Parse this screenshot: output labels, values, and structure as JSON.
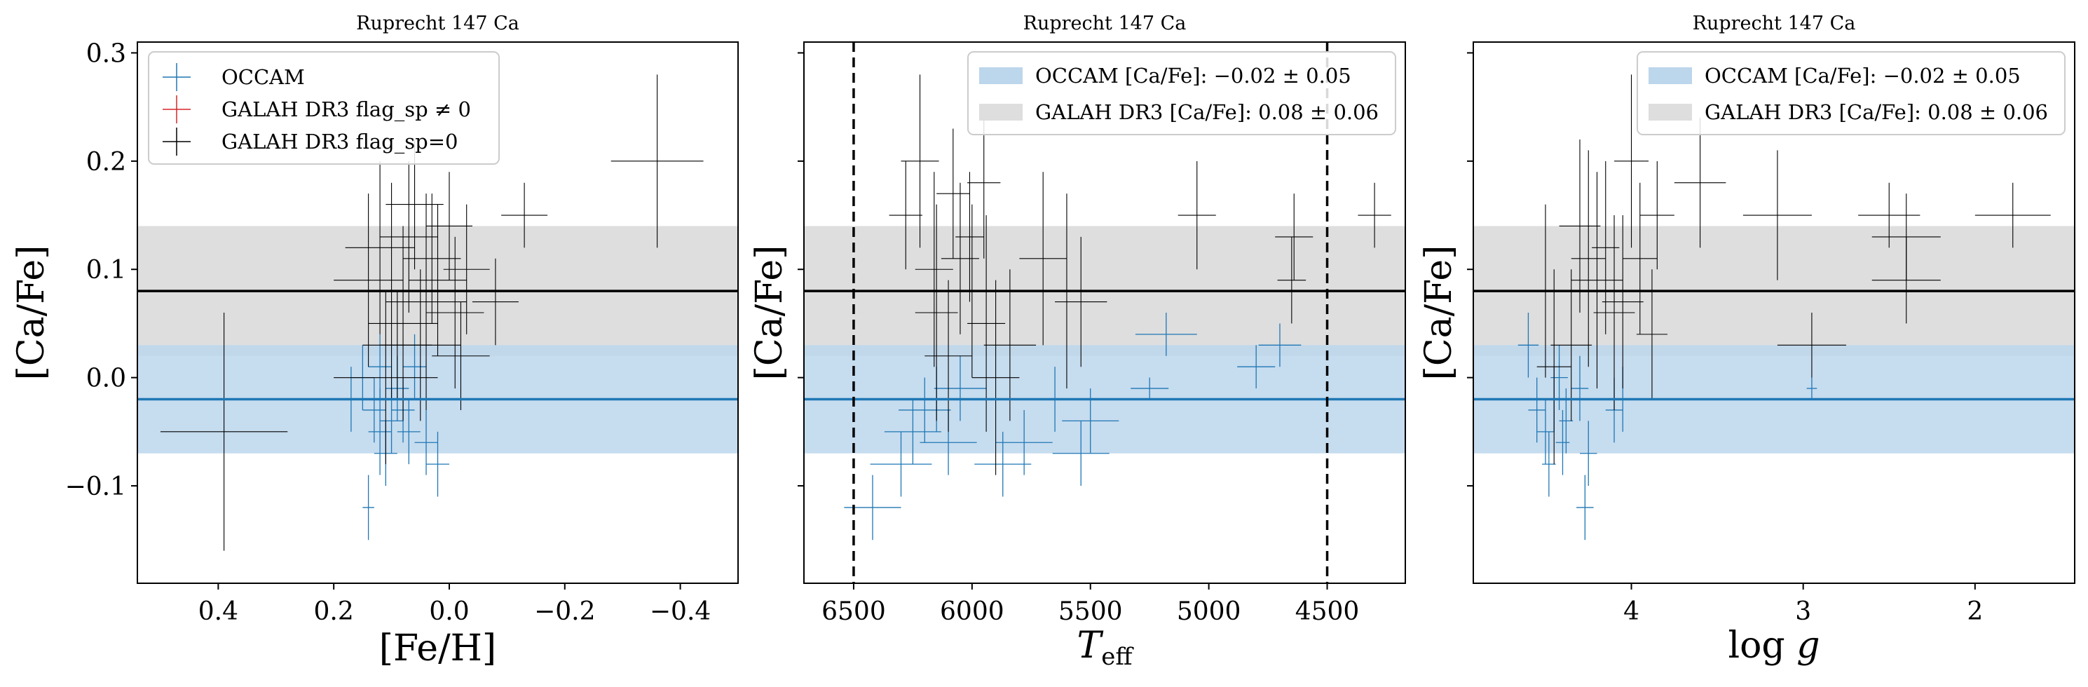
{
  "figure": {
    "background": "#ffffff"
  },
  "style": {
    "occam_color": "#1f77b4",
    "galah_flagged_color": "#d62728",
    "galah_color": "#000000",
    "occam_band_color": "#bcd6ec",
    "galah_band_color": "#dedede"
  },
  "chart_data": [
    {
      "type": "scatter",
      "title": "Ruprecht 147 Ca",
      "xlabel": "[Fe/H]",
      "ylabel": "[Ca/Fe]",
      "xlim": [
        0.54,
        -0.5
      ],
      "ylim": [
        -0.19,
        0.31
      ],
      "xticks": [
        0.4,
        0.2,
        0.0,
        -0.2,
        -0.4
      ],
      "xtick_labels": [
        "0.4",
        "0.2",
        "0.0",
        "−0.2",
        "−0.4"
      ],
      "yticks": [
        -0.1,
        0.0,
        0.1,
        0.2,
        0.3
      ],
      "ytick_labels": [
        "−0.1",
        "0.0",
        "0.1",
        "0.2",
        "0.3"
      ],
      "show_ytick_labels": true,
      "grid": false,
      "legend": {
        "position": "top-left",
        "style": "markers",
        "entries": [
          {
            "label": "OCCAM",
            "color": "#1f77b4"
          },
          {
            "label": "GALAH DR3 flag_sp ≠ 0",
            "color": "#d62728"
          },
          {
            "label": "GALAH DR3 flag_sp=0",
            "color": "#000000"
          }
        ]
      },
      "bands": [
        {
          "series": "OCCAM",
          "center": -0.02,
          "sigma": 0.05
        },
        {
          "series": "GALAH DR3",
          "center": 0.08,
          "sigma": 0.06
        }
      ],
      "vlines": [],
      "series": [
        {
          "name": "OCCAM",
          "points": [
            {
              "x": 0.17,
              "y": -0.02,
              "xerr": 0.02,
              "yerr": 0.03
            },
            {
              "x": 0.15,
              "y": 0.0,
              "xerr": 0.02,
              "yerr": 0.03
            },
            {
              "x": 0.14,
              "y": -0.12,
              "xerr": 0.01,
              "yerr": 0.03
            },
            {
              "x": 0.13,
              "y": -0.03,
              "xerr": 0.02,
              "yerr": 0.03
            },
            {
              "x": 0.12,
              "y": -0.05,
              "xerr": 0.02,
              "yerr": 0.04
            },
            {
              "x": 0.11,
              "y": -0.07,
              "xerr": 0.02,
              "yerr": 0.03
            },
            {
              "x": 0.1,
              "y": -0.04,
              "xerr": 0.02,
              "yerr": 0.03
            },
            {
              "x": 0.09,
              "y": -0.01,
              "xerr": 0.02,
              "yerr": 0.03
            },
            {
              "x": 0.08,
              "y": -0.03,
              "xerr": 0.02,
              "yerr": 0.03
            },
            {
              "x": 0.07,
              "y": -0.05,
              "xerr": 0.02,
              "yerr": 0.03
            },
            {
              "x": 0.06,
              "y": 0.01,
              "xerr": 0.02,
              "yerr": 0.03
            },
            {
              "x": 0.12,
              "y": 0.01,
              "xerr": 0.02,
              "yerr": 0.03
            },
            {
              "x": 0.02,
              "y": -0.08,
              "xerr": 0.02,
              "yerr": 0.03
            },
            {
              "x": 0.04,
              "y": -0.06,
              "xerr": 0.02,
              "yerr": 0.03
            }
          ]
        },
        {
          "name": "GALAH DR3",
          "points": [
            {
              "x": 0.39,
              "y": -0.05,
              "xerr": 0.11,
              "yerr": 0.11
            },
            {
              "x": -0.36,
              "y": 0.2,
              "xerr": 0.08,
              "yerr": 0.08
            },
            {
              "x": -0.13,
              "y": 0.15,
              "xerr": 0.04,
              "yerr": 0.03
            },
            {
              "x": -0.08,
              "y": 0.07,
              "xerr": 0.04,
              "yerr": 0.04
            },
            {
              "x": 0.12,
              "y": 0.12,
              "xerr": 0.06,
              "yerr": 0.08
            },
            {
              "x": 0.1,
              "y": 0.08,
              "xerr": 0.07,
              "yerr": 0.1
            },
            {
              "x": 0.08,
              "y": 0.05,
              "xerr": 0.06,
              "yerr": 0.09
            },
            {
              "x": 0.06,
              "y": 0.16,
              "xerr": 0.05,
              "yerr": 0.06
            },
            {
              "x": 0.05,
              "y": 0.03,
              "xerr": 0.07,
              "yerr": 0.07
            },
            {
              "x": 0.03,
              "y": 0.11,
              "xerr": 0.05,
              "yerr": 0.06
            },
            {
              "x": 0.02,
              "y": 0.09,
              "xerr": 0.05,
              "yerr": 0.07
            },
            {
              "x": 0.0,
              "y": 0.14,
              "xerr": 0.04,
              "yerr": 0.05
            },
            {
              "x": -0.01,
              "y": 0.06,
              "xerr": 0.05,
              "yerr": 0.07
            },
            {
              "x": -0.02,
              "y": 0.02,
              "xerr": 0.05,
              "yerr": 0.05
            },
            {
              "x": 0.14,
              "y": 0.09,
              "xerr": 0.06,
              "yerr": 0.08
            },
            {
              "x": 0.11,
              "y": 0.0,
              "xerr": 0.09,
              "yerr": 0.08
            },
            {
              "x": 0.07,
              "y": 0.13,
              "xerr": 0.05,
              "yerr": 0.07
            },
            {
              "x": 0.04,
              "y": 0.07,
              "xerr": 0.07,
              "yerr": 0.1
            },
            {
              "x": -0.03,
              "y": 0.1,
              "xerr": 0.04,
              "yerr": 0.06
            },
            {
              "x": 0.09,
              "y": 0.03,
              "xerr": 0.06,
              "yerr": 0.05
            }
          ]
        }
      ]
    },
    {
      "type": "scatter",
      "title": "Ruprecht 147 Ca",
      "xlabel": "T_eff",
      "ylabel": "[Ca/Fe]",
      "xlim": [
        6710,
        4170
      ],
      "ylim": [
        -0.19,
        0.31
      ],
      "xticks": [
        6500,
        6000,
        5500,
        5000,
        4500
      ],
      "xtick_labels": [
        "6500",
        "6000",
        "5500",
        "5000",
        "4500"
      ],
      "yticks": [
        -0.1,
        0.0,
        0.1,
        0.2,
        0.3
      ],
      "ytick_labels": [],
      "show_ytick_labels": false,
      "grid": false,
      "legend": {
        "position": "top-right",
        "style": "bands",
        "entries": [
          {
            "label": "OCCAM [Ca/Fe]: −0.02 ± 0.05",
            "color": "#bcd6ec"
          },
          {
            "label": "GALAH DR3 [Ca/Fe]: 0.08 ± 0.06",
            "color": "#dedede"
          }
        ]
      },
      "bands": [
        {
          "series": "OCCAM",
          "center": -0.02,
          "sigma": 0.05
        },
        {
          "series": "GALAH DR3",
          "center": 0.08,
          "sigma": 0.06
        }
      ],
      "vlines": [
        6500,
        4500
      ],
      "series": [
        {
          "name": "OCCAM",
          "points": [
            {
              "x": 6420,
              "y": -0.12,
              "xerr": 120,
              "yerr": 0.03
            },
            {
              "x": 6300,
              "y": -0.08,
              "xerr": 130,
              "yerr": 0.03
            },
            {
              "x": 6250,
              "y": -0.05,
              "xerr": 120,
              "yerr": 0.03
            },
            {
              "x": 6200,
              "y": -0.03,
              "xerr": 110,
              "yerr": 0.03
            },
            {
              "x": 6150,
              "y": -0.02,
              "xerr": 130,
              "yerr": 0.03
            },
            {
              "x": 6100,
              "y": -0.06,
              "xerr": 120,
              "yerr": 0.03
            },
            {
              "x": 6050,
              "y": -0.01,
              "xerr": 110,
              "yerr": 0.03
            },
            {
              "x": 5870,
              "y": -0.08,
              "xerr": 120,
              "yerr": 0.03
            },
            {
              "x": 5780,
              "y": -0.06,
              "xerr": 120,
              "yerr": 0.03
            },
            {
              "x": 5650,
              "y": -0.02,
              "xerr": 110,
              "yerr": 0.03
            },
            {
              "x": 5500,
              "y": -0.04,
              "xerr": 120,
              "yerr": 0.03
            },
            {
              "x": 5540,
              "y": -0.07,
              "xerr": 120,
              "yerr": 0.03
            },
            {
              "x": 5250,
              "y": -0.01,
              "xerr": 80,
              "yerr": 0.01
            },
            {
              "x": 5180,
              "y": 0.04,
              "xerr": 130,
              "yerr": 0.02
            },
            {
              "x": 4800,
              "y": 0.01,
              "xerr": 80,
              "yerr": 0.02
            },
            {
              "x": 4700,
              "y": 0.03,
              "xerr": 90,
              "yerr": 0.02
            }
          ]
        },
        {
          "name": "GALAH DR3",
          "points": [
            {
              "x": 6220,
              "y": 0.2,
              "xerr": 80,
              "yerr": 0.08
            },
            {
              "x": 6080,
              "y": 0.17,
              "xerr": 70,
              "yerr": 0.06
            },
            {
              "x": 5950,
              "y": 0.18,
              "xerr": 70,
              "yerr": 0.07
            },
            {
              "x": 6010,
              "y": 0.13,
              "xerr": 60,
              "yerr": 0.06
            },
            {
              "x": 6160,
              "y": 0.1,
              "xerr": 80,
              "yerr": 0.09
            },
            {
              "x": 6150,
              "y": 0.06,
              "xerr": 90,
              "yerr": 0.1
            },
            {
              "x": 6100,
              "y": 0.02,
              "xerr": 100,
              "yerr": 0.07
            },
            {
              "x": 6000,
              "y": 0.08,
              "xerr": 90,
              "yerr": 0.08
            },
            {
              "x": 5940,
              "y": 0.05,
              "xerr": 80,
              "yerr": 0.1
            },
            {
              "x": 5840,
              "y": 0.03,
              "xerr": 110,
              "yerr": 0.07
            },
            {
              "x": 5700,
              "y": 0.11,
              "xerr": 100,
              "yerr": 0.08
            },
            {
              "x": 5600,
              "y": 0.08,
              "xerr": 90,
              "yerr": 0.09
            },
            {
              "x": 5540,
              "y": 0.07,
              "xerr": 110,
              "yerr": 0.06
            },
            {
              "x": 6280,
              "y": 0.15,
              "xerr": 70,
              "yerr": 0.05
            },
            {
              "x": 5050,
              "y": 0.15,
              "xerr": 80,
              "yerr": 0.05
            },
            {
              "x": 4640,
              "y": 0.13,
              "xerr": 80,
              "yerr": 0.04
            },
            {
              "x": 4300,
              "y": 0.15,
              "xerr": 70,
              "yerr": 0.03
            },
            {
              "x": 4650,
              "y": 0.09,
              "xerr": 60,
              "yerr": 0.04
            },
            {
              "x": 5900,
              "y": 0.0,
              "xerr": 100,
              "yerr": 0.09
            },
            {
              "x": 6050,
              "y": 0.11,
              "xerr": 80,
              "yerr": 0.07
            }
          ]
        }
      ]
    },
    {
      "type": "scatter",
      "title": "Ruprecht 147 Ca",
      "xlabel": "log g",
      "ylabel": "[Ca/Fe]",
      "xlim": [
        4.92,
        1.42
      ],
      "ylim": [
        -0.19,
        0.31
      ],
      "xticks": [
        4,
        3,
        2
      ],
      "xtick_labels": [
        "4",
        "3",
        "2"
      ],
      "yticks": [
        -0.1,
        0.0,
        0.1,
        0.2,
        0.3
      ],
      "ytick_labels": [],
      "show_ytick_labels": false,
      "grid": false,
      "legend": {
        "position": "top-right",
        "style": "bands",
        "entries": [
          {
            "label": "OCCAM [Ca/Fe]: −0.02 ± 0.05",
            "color": "#bcd6ec"
          },
          {
            "label": "GALAH DR3 [Ca/Fe]: 0.08 ± 0.06",
            "color": "#dedede"
          }
        ]
      },
      "bands": [
        {
          "series": "OCCAM",
          "center": -0.02,
          "sigma": 0.05
        },
        {
          "series": "GALAH DR3",
          "center": 0.08,
          "sigma": 0.06
        }
      ],
      "vlines": [],
      "series": [
        {
          "name": "OCCAM",
          "points": [
            {
              "x": 4.55,
              "y": -0.03,
              "xerr": 0.05,
              "yerr": 0.03
            },
            {
              "x": 4.5,
              "y": -0.05,
              "xerr": 0.05,
              "yerr": 0.03
            },
            {
              "x": 4.48,
              "y": -0.08,
              "xerr": 0.04,
              "yerr": 0.03
            },
            {
              "x": 4.45,
              "y": -0.02,
              "xerr": 0.05,
              "yerr": 0.03
            },
            {
              "x": 4.42,
              "y": 0.0,
              "xerr": 0.05,
              "yerr": 0.03
            },
            {
              "x": 4.4,
              "y": -0.06,
              "xerr": 0.04,
              "yerr": 0.03
            },
            {
              "x": 4.38,
              "y": -0.04,
              "xerr": 0.04,
              "yerr": 0.03
            },
            {
              "x": 4.3,
              "y": -0.01,
              "xerr": 0.05,
              "yerr": 0.03
            },
            {
              "x": 4.27,
              "y": -0.12,
              "xerr": 0.05,
              "yerr": 0.03
            },
            {
              "x": 4.25,
              "y": -0.07,
              "xerr": 0.05,
              "yerr": 0.03
            },
            {
              "x": 4.1,
              "y": -0.03,
              "xerr": 0.05,
              "yerr": 0.03
            },
            {
              "x": 4.05,
              "y": -0.02,
              "xerr": 0.05,
              "yerr": 0.03
            },
            {
              "x": 4.6,
              "y": 0.03,
              "xerr": 0.06,
              "yerr": 0.03
            },
            {
              "x": 2.95,
              "y": -0.01,
              "xerr": 0.03,
              "yerr": 0.01
            }
          ]
        },
        {
          "name": "GALAH DR3",
          "points": [
            {
              "x": 4.0,
              "y": 0.2,
              "xerr": 0.1,
              "yerr": 0.08
            },
            {
              "x": 3.6,
              "y": 0.18,
              "xerr": 0.15,
              "yerr": 0.06
            },
            {
              "x": 3.85,
              "y": 0.15,
              "xerr": 0.1,
              "yerr": 0.05
            },
            {
              "x": 4.3,
              "y": 0.14,
              "xerr": 0.12,
              "yerr": 0.08
            },
            {
              "x": 4.2,
              "y": 0.09,
              "xerr": 0.15,
              "yerr": 0.1
            },
            {
              "x": 4.1,
              "y": 0.06,
              "xerr": 0.12,
              "yerr": 0.09
            },
            {
              "x": 4.35,
              "y": 0.03,
              "xerr": 0.12,
              "yerr": 0.07
            },
            {
              "x": 4.5,
              "y": 0.08,
              "xerr": 0.15,
              "yerr": 0.08
            },
            {
              "x": 4.45,
              "y": 0.01,
              "xerr": 0.1,
              "yerr": 0.09
            },
            {
              "x": 3.95,
              "y": 0.11,
              "xerr": 0.1,
              "yerr": 0.07
            },
            {
              "x": 3.88,
              "y": 0.04,
              "xerr": 0.09,
              "yerr": 0.06
            },
            {
              "x": 4.15,
              "y": 0.12,
              "xerr": 0.08,
              "yerr": 0.08
            },
            {
              "x": 3.15,
              "y": 0.15,
              "xerr": 0.2,
              "yerr": 0.06
            },
            {
              "x": 2.5,
              "y": 0.15,
              "xerr": 0.18,
              "yerr": 0.03
            },
            {
              "x": 2.4,
              "y": 0.13,
              "xerr": 0.2,
              "yerr": 0.04
            },
            {
              "x": 1.78,
              "y": 0.15,
              "xerr": 0.22,
              "yerr": 0.03
            },
            {
              "x": 2.4,
              "y": 0.09,
              "xerr": 0.2,
              "yerr": 0.04
            },
            {
              "x": 2.95,
              "y": 0.03,
              "xerr": 0.2,
              "yerr": 0.03
            },
            {
              "x": 4.05,
              "y": 0.07,
              "xerr": 0.12,
              "yerr": 0.08
            },
            {
              "x": 4.25,
              "y": 0.11,
              "xerr": 0.1,
              "yerr": 0.1
            }
          ]
        }
      ]
    }
  ]
}
